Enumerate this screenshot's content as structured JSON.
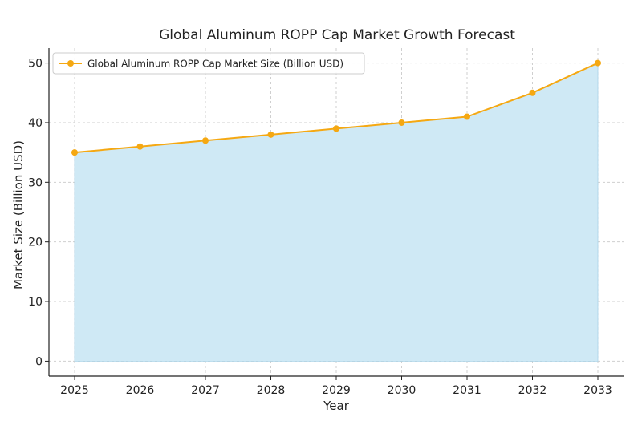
{
  "chart_data": {
    "type": "area",
    "title": "Global Aluminum ROPP Cap Market Growth Forecast",
    "xlabel": "Year",
    "ylabel": "Market Size (Billion USD)",
    "categories": [
      "2025",
      "2026",
      "2027",
      "2028",
      "2029",
      "2030",
      "2031",
      "2032",
      "2033"
    ],
    "series": [
      {
        "name": "Global Aluminum ROPP Cap Market Size (Billion USD)",
        "values": [
          35,
          36,
          37,
          38,
          39,
          40,
          41,
          45,
          50
        ]
      }
    ],
    "ylim": [
      -2.5,
      52.5
    ],
    "yticks": [
      0,
      10,
      20,
      30,
      40,
      50
    ],
    "grid": true,
    "legend_position": "top-left",
    "colors": {
      "line": "#f5a812",
      "fill": "#cfe9f5",
      "fill_edge": "#a9d3e8"
    }
  }
}
